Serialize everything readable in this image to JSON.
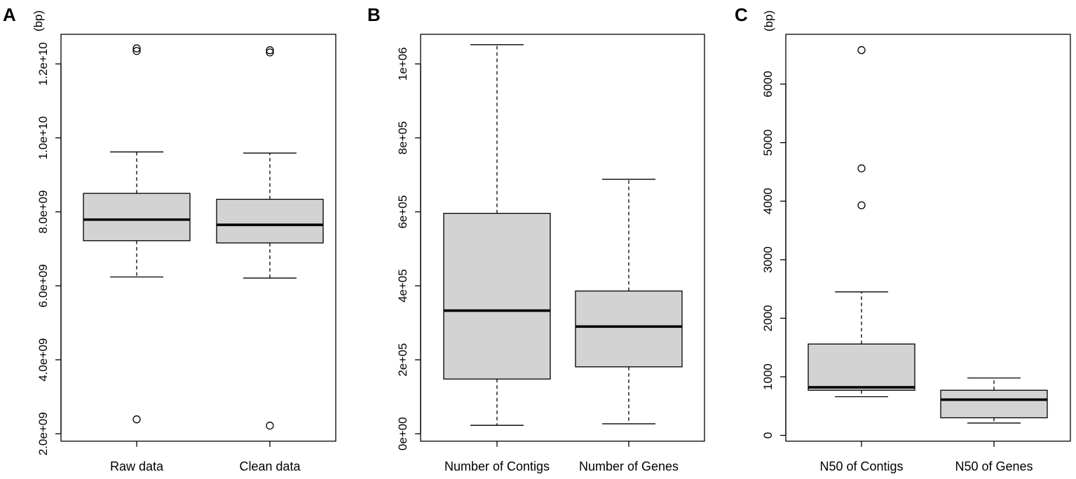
{
  "chart_data": [
    {
      "panel": "A",
      "type": "boxplot",
      "unit": "(bp)",
      "ylim": [
        1800000000,
        12800000000
      ],
      "yticks": [
        2000000000,
        4000000000,
        6000000000,
        8000000000,
        10000000000,
        12000000000
      ],
      "ytick_labels": [
        "2.0e+09",
        "4.0e+09",
        "6.0e+09",
        "8.0e+09",
        "1.0e+10",
        "1.2e+10"
      ],
      "categories": [
        "Raw data",
        "Clean data"
      ],
      "boxes": [
        {
          "name": "Raw data",
          "whisker_low": 6240000000,
          "q1": 7220000000,
          "median": 7790000000,
          "q3": 8500000000,
          "whisker_high": 9620000000,
          "outliers": [
            2390000000,
            12350000000,
            12420000000
          ]
        },
        {
          "name": "Clean data",
          "whisker_low": 6210000000,
          "q1": 7160000000,
          "median": 7650000000,
          "q3": 8340000000,
          "whisker_high": 9590000000,
          "outliers": [
            2220000000,
            12310000000,
            12370000000
          ]
        }
      ]
    },
    {
      "panel": "B",
      "type": "boxplot",
      "unit": "",
      "ylim": [
        -20000,
        1080000
      ],
      "yticks": [
        0,
        200000,
        400000,
        600000,
        800000,
        1000000
      ],
      "ytick_labels": [
        "0e+00",
        "2e+05",
        "4e+05",
        "6e+05",
        "8e+05",
        "1e+06"
      ],
      "categories": [
        "Number of Contigs",
        "Number of Genes"
      ],
      "boxes": [
        {
          "name": "Number of Contigs",
          "whisker_low": 23000,
          "q1": 148000,
          "median": 333000,
          "q3": 596000,
          "whisker_high": 1052000,
          "outliers": []
        },
        {
          "name": "Number of Genes",
          "whisker_low": 27000,
          "q1": 181000,
          "median": 290000,
          "q3": 386000,
          "whisker_high": 688000,
          "outliers": []
        }
      ]
    },
    {
      "panel": "C",
      "type": "boxplot",
      "unit": "(bp)",
      "ylim": [
        -100,
        6850
      ],
      "yticks": [
        0,
        1000,
        2000,
        3000,
        4000,
        5000,
        6000
      ],
      "ytick_labels": [
        "0",
        "1000",
        "2000",
        "3000",
        "4000",
        "5000",
        "6000"
      ],
      "categories": [
        "N50 of Contigs",
        "N50 of Genes"
      ],
      "boxes": [
        {
          "name": "N50 of Contigs",
          "whisker_low": 660,
          "q1": 770,
          "median": 820,
          "q3": 1560,
          "whisker_high": 2450,
          "outliers": [
            3930,
            4560,
            6580
          ]
        },
        {
          "name": "N50 of Genes",
          "whisker_low": 210,
          "q1": 300,
          "median": 610,
          "q3": 770,
          "whisker_high": 980,
          "outliers": []
        }
      ]
    }
  ]
}
